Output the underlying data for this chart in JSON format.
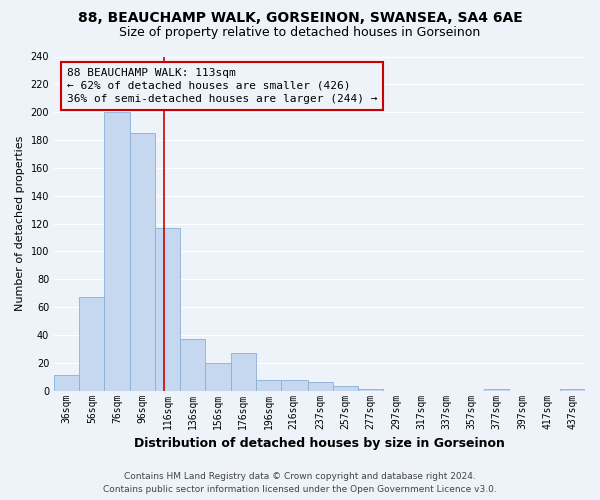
{
  "title": "88, BEAUCHAMP WALK, GORSEINON, SWANSEA, SA4 6AE",
  "subtitle": "Size of property relative to detached houses in Gorseinon",
  "xlabel": "Distribution of detached houses by size in Gorseinon",
  "ylabel": "Number of detached properties",
  "bar_left_edges": [
    26,
    46,
    66,
    86,
    106,
    126,
    146,
    166,
    186,
    206,
    227,
    247,
    267,
    287,
    307,
    327,
    347,
    367,
    387,
    407,
    427
  ],
  "bar_right_edges": [
    46,
    66,
    86,
    106,
    126,
    146,
    166,
    186,
    206,
    227,
    247,
    267,
    287,
    307,
    327,
    347,
    367,
    387,
    407,
    427,
    447
  ],
  "bar_heights": [
    11,
    67,
    200,
    185,
    117,
    37,
    20,
    27,
    8,
    8,
    6,
    3,
    1,
    0,
    0,
    0,
    0,
    1,
    0,
    0,
    1
  ],
  "tick_labels": [
    "36sqm",
    "56sqm",
    "76sqm",
    "96sqm",
    "116sqm",
    "136sqm",
    "156sqm",
    "176sqm",
    "196sqm",
    "216sqm",
    "237sqm",
    "257sqm",
    "277sqm",
    "297sqm",
    "317sqm",
    "337sqm",
    "357sqm",
    "377sqm",
    "397sqm",
    "417sqm",
    "437sqm"
  ],
  "tick_positions": [
    36,
    56,
    76,
    96,
    116,
    136,
    156,
    176,
    196,
    216,
    237,
    257,
    277,
    297,
    317,
    337,
    357,
    377,
    397,
    417,
    437
  ],
  "bar_color": "#c5d8ef",
  "bar_edge_color": "#8ab0d4",
  "property_line_x": 113,
  "property_line_color": "#cc0000",
  "ann_line1": "88 BEAUCHAMP WALK: 113sqm",
  "ann_line2": "← 62% of detached houses are smaller (426)",
  "ann_line3": "36% of semi-detached houses are larger (244) →",
  "ylim": [
    0,
    240
  ],
  "xlim": [
    26,
    447
  ],
  "yticks": [
    0,
    20,
    40,
    60,
    80,
    100,
    120,
    140,
    160,
    180,
    200,
    220,
    240
  ],
  "footer_line1": "Contains HM Land Registry data © Crown copyright and database right 2024.",
  "footer_line2": "Contains public sector information licensed under the Open Government Licence v3.0.",
  "bg_color": "#eef2f9",
  "grid_color": "#ffffff",
  "title_fontsize": 10,
  "subtitle_fontsize": 9,
  "xlabel_fontsize": 9,
  "ylabel_fontsize": 8,
  "tick_fontsize": 7,
  "ann_fontsize": 8,
  "footer_fontsize": 6.5
}
